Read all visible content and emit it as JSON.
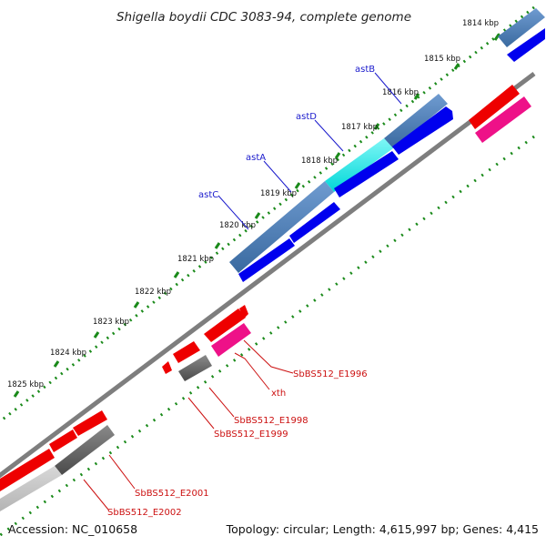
{
  "title": "Shigella boydii CDC 3083-94, complete genome",
  "footer": {
    "accession": "Accession: NC_010658",
    "summary": "Topology: circular; Length: 4,615,997 bp; Genes: 4,415"
  },
  "ticks": [
    "1814 kbp",
    "1815 kbp",
    "1816 kbp",
    "1817 kbp",
    "1818 kbp",
    "1819 kbp",
    "1820 kbp",
    "1821 kbp",
    "1822 kbp",
    "1823 kbp",
    "1824 kbp",
    "1825 kbp"
  ],
  "forward_genes": [
    "astB",
    "astD",
    "astA",
    "astC"
  ],
  "reverse_genes": [
    "SbBS512_E1996",
    "xth",
    "SbBS512_E1998",
    "SbBS512_E1999",
    "SbBS512_E2001",
    "SbBS512_E2002"
  ],
  "colors": {
    "forward_cds": "#0000ee",
    "forward_gene": "#4a7db5",
    "highlight_gene": "#00e8e8",
    "reverse_cds": "#ee0000",
    "reverse_gene": "#ee1188",
    "pseudo_gene": "#5a5a5a",
    "backbone": "#808080",
    "ticks": "#1a8a1a",
    "forward_label": "#1a1acc",
    "reverse_label": "#cc1111"
  }
}
